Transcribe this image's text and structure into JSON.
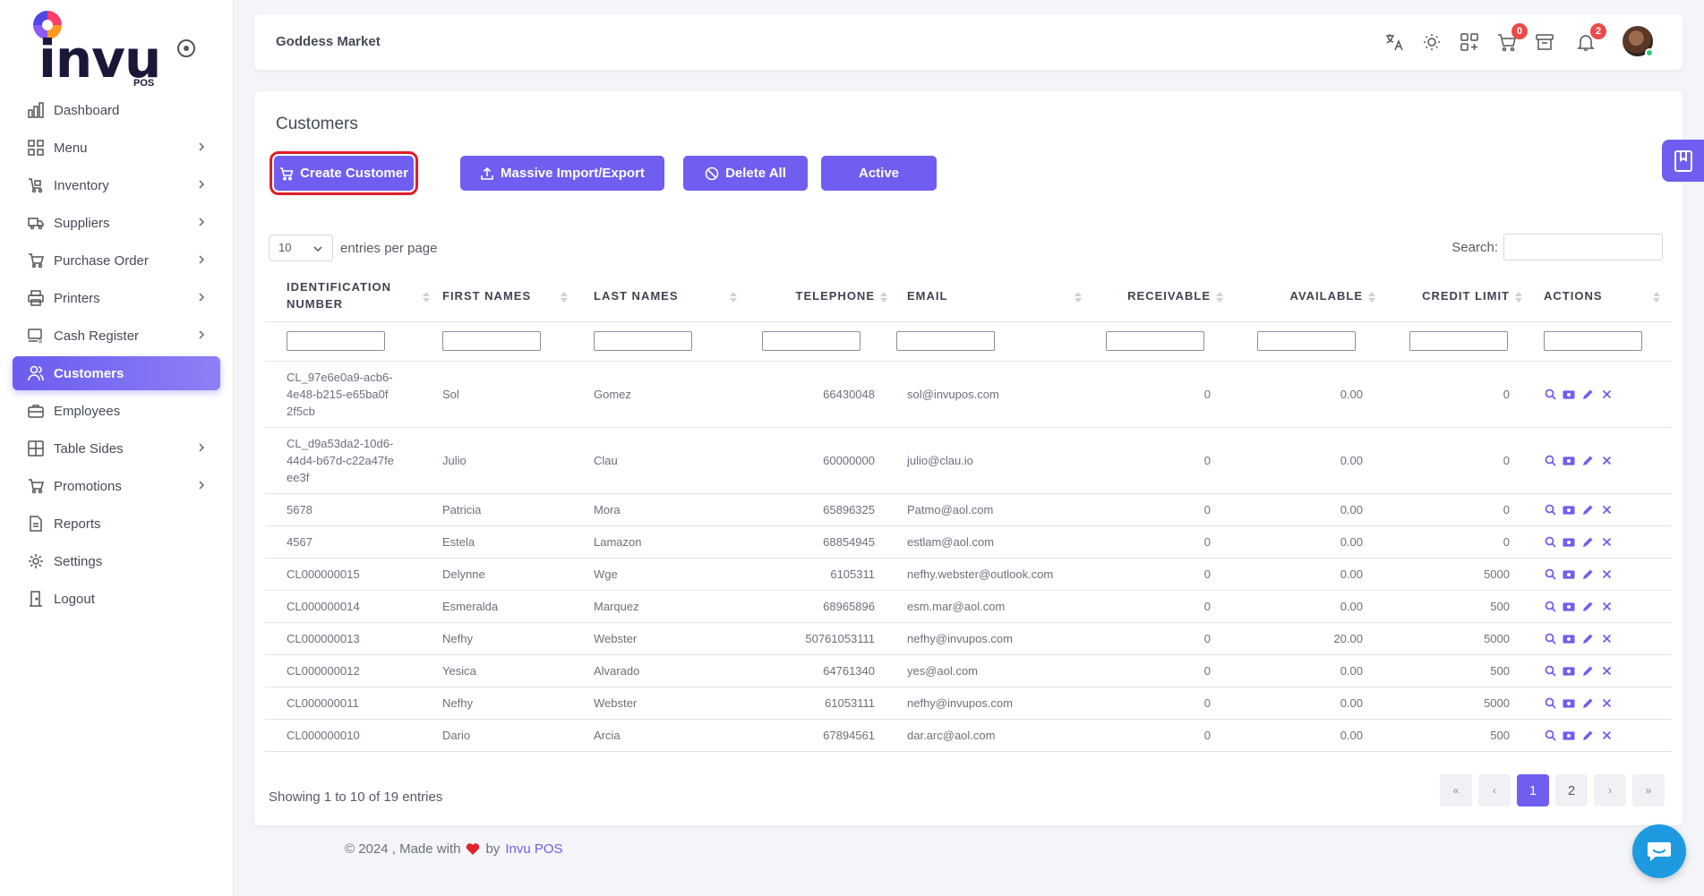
{
  "brand": {
    "logo_text": "invu",
    "logo_sub": "POS"
  },
  "sidebar": {
    "items": [
      {
        "label": "Dashboard",
        "icon": "chart-bar-icon",
        "has_chevron": false,
        "active": false
      },
      {
        "label": "Menu",
        "icon": "grid-icon",
        "has_chevron": true,
        "active": false
      },
      {
        "label": "Inventory",
        "icon": "cart-box-icon",
        "has_chevron": true,
        "active": false
      },
      {
        "label": "Suppliers",
        "icon": "truck-icon",
        "has_chevron": true,
        "active": false
      },
      {
        "label": "Purchase Order",
        "icon": "shopping-cart-icon",
        "has_chevron": true,
        "active": false
      },
      {
        "label": "Printers",
        "icon": "printer-icon",
        "has_chevron": true,
        "active": false
      },
      {
        "label": "Cash Register",
        "icon": "cash-register-icon",
        "has_chevron": true,
        "active": false
      },
      {
        "label": "Customers",
        "icon": "users-icon",
        "has_chevron": false,
        "active": true
      },
      {
        "label": "Employees",
        "icon": "briefcase-icon",
        "has_chevron": false,
        "active": false
      },
      {
        "label": "Table Sides",
        "icon": "table-icon",
        "has_chevron": true,
        "active": false
      },
      {
        "label": "Promotions",
        "icon": "cart-tag-icon",
        "has_chevron": true,
        "active": false
      },
      {
        "label": "Reports",
        "icon": "document-icon",
        "has_chevron": false,
        "active": false
      },
      {
        "label": "Settings",
        "icon": "gear-icon",
        "has_chevron": false,
        "active": false
      },
      {
        "label": "Logout",
        "icon": "door-icon",
        "has_chevron": false,
        "active": false
      }
    ]
  },
  "header": {
    "store_name": "Goddess Market",
    "cart_badge": "0",
    "notification_badge": "2"
  },
  "main": {
    "title": "Customers",
    "buttons": {
      "create": "Create Customer",
      "import": "Massive Import/Export",
      "delete": "Delete All",
      "active": "Active"
    },
    "entries_value": "10",
    "entries_label": "entries per page",
    "search_label": "Search:",
    "columns": [
      "IDENTIFICATION NUMBER",
      "FIRST NAMES",
      "LAST NAMES",
      "TELEPHONE",
      "EMAIL",
      "RECEIVABLE",
      "AVAILABLE",
      "CREDIT LIMIT",
      "ACTIONS"
    ],
    "rows": [
      {
        "id": "CL_97e6e0a9-acb6-4e48-b215-e65ba0f2f5cb",
        "first": "Sol",
        "last": "Gomez",
        "phone": "66430048",
        "email": "sol@invupos.com",
        "receivable": "0",
        "available": "0.00",
        "credit": "0"
      },
      {
        "id": "CL_d9a53da2-10d6-44d4-b67d-c22a47feee3f",
        "first": "Julio",
        "last": "Clau",
        "phone": "60000000",
        "email": "julio@clau.io",
        "receivable": "0",
        "available": "0.00",
        "credit": "0"
      },
      {
        "id": "5678",
        "first": "Patricia",
        "last": "Mora",
        "phone": "65896325",
        "email": "Patmo@aol.com",
        "receivable": "0",
        "available": "0.00",
        "credit": "0"
      },
      {
        "id": "4567",
        "first": "Estela",
        "last": "Lamazon",
        "phone": "68854945",
        "email": "estlam@aol.com",
        "receivable": "0",
        "available": "0.00",
        "credit": "0"
      },
      {
        "id": "CL000000015",
        "first": "Delynne",
        "last": "Wge",
        "phone": "6105311",
        "email": "nefhy.webster@outlook.com",
        "receivable": "0",
        "available": "0.00",
        "credit": "5000"
      },
      {
        "id": "CL000000014",
        "first": "Esmeralda",
        "last": "Marquez",
        "phone": "68965896",
        "email": "esm.mar@aol.com",
        "receivable": "0",
        "available": "0.00",
        "credit": "500"
      },
      {
        "id": "CL000000013",
        "first": "Nefhy",
        "last": "Webster",
        "phone": "50761053111",
        "email": "nefhy@invupos.com",
        "receivable": "0",
        "available": "20.00",
        "credit": "5000"
      },
      {
        "id": "CL000000012",
        "first": "Yesica",
        "last": "Alvarado",
        "phone": "64761340",
        "email": "yes@aol.com",
        "receivable": "0",
        "available": "0.00",
        "credit": "500"
      },
      {
        "id": "CL000000011",
        "first": "Nefhy",
        "last": "Webster",
        "phone": "61053111",
        "email": "nefhy@invupos.com",
        "receivable": "0",
        "available": "0.00",
        "credit": "5000"
      },
      {
        "id": "CL000000010",
        "first": "Dario",
        "last": "Arcia",
        "phone": "67894561",
        "email": "dar.arc@aol.com",
        "receivable": "0",
        "available": "0.00",
        "credit": "500"
      }
    ],
    "showing": "Showing 1 to 10 of 19 entries",
    "pagination": {
      "first": "«",
      "prev": "‹",
      "pages": [
        "1",
        "2"
      ],
      "next": "›",
      "last": "»",
      "current": "1"
    }
  },
  "footer": {
    "prefix": "© 2024 , Made with",
    "by": "by",
    "brand": "Invu POS"
  },
  "colors": {
    "accent": "#6f5ef0",
    "danger": "#ea4a4a",
    "highlight_outline": "#e11d2a",
    "chat": "#1e9be0"
  }
}
